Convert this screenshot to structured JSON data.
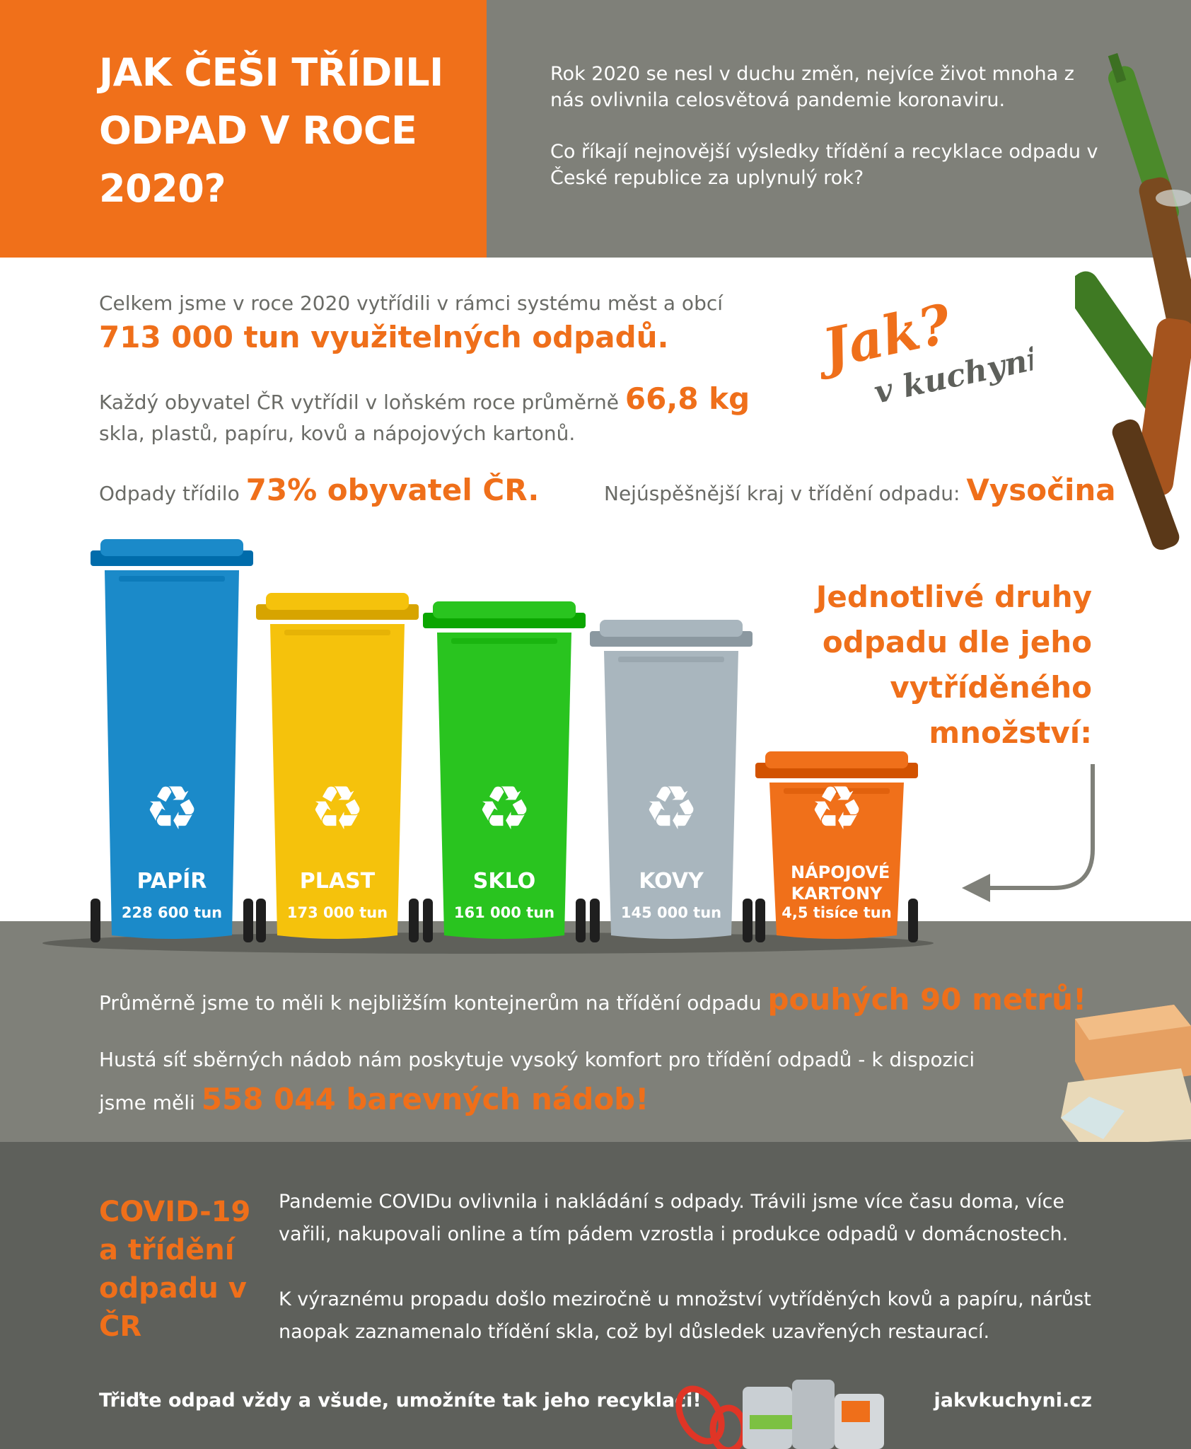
{
  "header": {
    "title": "JAK ČEŠI TŘÍDILI ODPAD V ROCE 2020?",
    "intro_p1": "Rok 2020 se nesl v duchu změn, nejvíce život mnoha z nás ovlivnila celosvětová pandemie koronaviru.",
    "intro_p2": "Co říkají nejnovější výsledky třídění a recyklace odpadu v České republice za uplynulý rok?"
  },
  "stats": {
    "total_intro": "Celkem jsme v roce 2020 vytřídili v rámci systému měst a obcí",
    "total_value": "713 000 tun využitelných odpadů.",
    "per_capita_intro": "Každý obyvatel ČR vytřídil v loňském roce průměrně",
    "per_capita_value": "66,8 kg",
    "per_capita_outro": "skla, plastů, papíru, kovů a nápojových kartonů.",
    "share_intro": "Odpady třídilo",
    "share_value": "73% obyvatel ČR.",
    "region_intro": "Nejúspěšnější kraj v třídění odpadu:",
    "region_value": "Vysočina"
  },
  "logo": {
    "line1": "Jak?",
    "line2": "v kuchyni"
  },
  "bins_heading": "Jednotlivé druhy odpadu dle jeho vytříděného množství:",
  "bins": [
    {
      "name": "PAPÍR",
      "value": "228 600 tun",
      "color": "#1b8ac9",
      "amount_t": 228600
    },
    {
      "name": "PLAST",
      "value": "173 000 tun",
      "color": "#f5c20c",
      "amount_t": 173000
    },
    {
      "name": "SKLO",
      "value": "161 000 tun",
      "color": "#29c41f",
      "amount_t": 161000
    },
    {
      "name": "KOVY",
      "value": "145 000 tun",
      "color": "#a9b6be",
      "amount_t": 145000
    },
    {
      "name": "NÁPOJOVÉ KARTONY",
      "value": "4,5 tisíce tun",
      "color": "#f0701a",
      "amount_t": 4500
    }
  ],
  "mid": {
    "distance_intro": "Průměrně jsme to měli k nejbližším kontejnerům na třídění odpadu",
    "distance_value": "pouhých 90 metrů!",
    "network_intro": "Hustá síť sběrných nádob nám poskytuje vysoký komfort pro třídění odpadů - k dispozici jsme měli",
    "network_value": "558 044 barevných nádob!"
  },
  "covid": {
    "title": "COVID-19 a třídění odpadu v ČR",
    "p1": "Pandemie COVIDu ovlivnila i nakládání s odpady. Trávili jsme více času doma, více vařili, nakupovali online a tím pádem vzrostla i produkce odpadů v domácnostech.",
    "p2": "K výraznému propadu došlo meziročně u množství vytříděných kovů a papíru, nárůst naopak zaznamenalo třídění skla, což byl důsledek uzavřených restaurací."
  },
  "footer": {
    "slogan": "Třiďte odpad vždy a všude, umožníte tak jeho recyklaci!",
    "website": "jakvkuchyni.cz"
  },
  "colors": {
    "accent": "#ef6f1a",
    "header_gray": "#7f8079",
    "bottom_gray": "#5e605b"
  }
}
